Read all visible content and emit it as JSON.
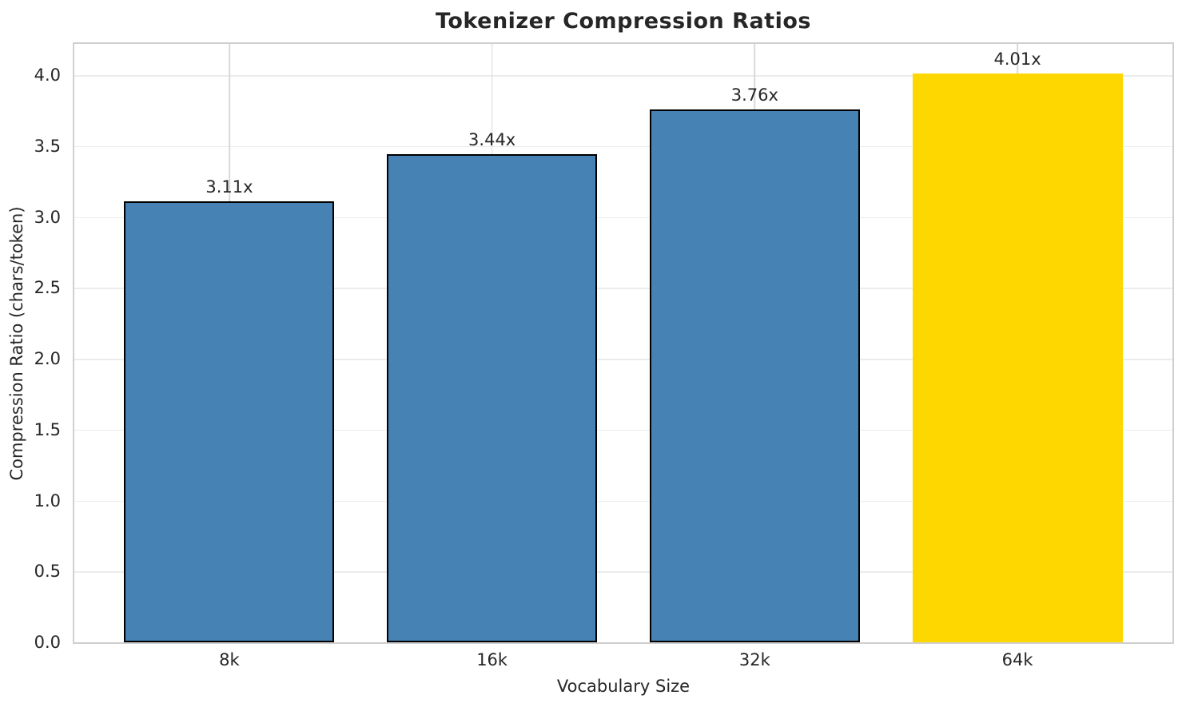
{
  "chart_data": {
    "type": "bar",
    "title": "Tokenizer Compression Ratios",
    "xlabel": "Vocabulary Size",
    "ylabel": "Compression Ratio (chars/token)",
    "categories": [
      "8k",
      "16k",
      "32k",
      "64k"
    ],
    "values": [
      3.11,
      3.44,
      3.76,
      4.01
    ],
    "bar_labels": [
      "3.11x",
      "3.44x",
      "3.76x",
      "4.01x"
    ],
    "bar_colors": [
      "#4682B4",
      "#4682B4",
      "#4682B4",
      "#FFD700"
    ],
    "bar_edge_colors": [
      "#000000",
      "#000000",
      "#000000",
      "none"
    ],
    "ytick_labels": [
      "0.0",
      "0.5",
      "1.0",
      "1.5",
      "2.0",
      "2.5",
      "3.0",
      "3.5",
      "4.0"
    ],
    "yticks": [
      0.0,
      0.5,
      1.0,
      1.5,
      2.0,
      2.5,
      3.0,
      3.5,
      4.0
    ],
    "ylim": [
      0,
      4.22
    ],
    "grid": true,
    "legend_position": "none",
    "style": {
      "primary_color": "#4682B4",
      "highlight_color": "#FFD700",
      "text_color": "#262626",
      "hgrid_color": "#ececec",
      "vgrid_color": "#d9d9d9",
      "spine_color": "#cfcfcf"
    }
  }
}
